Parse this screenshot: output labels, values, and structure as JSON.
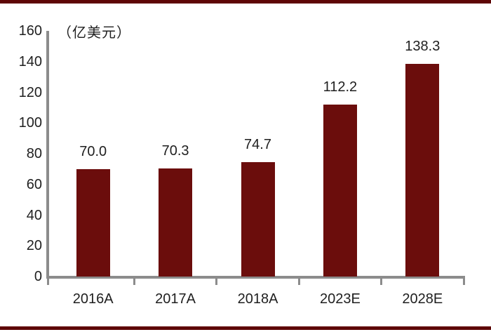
{
  "decorations": {
    "rule_color": "#5e0606"
  },
  "chart_data": {
    "type": "bar",
    "title": "",
    "unit_label": "（亿美元）",
    "categories": [
      "2016A",
      "2017A",
      "2018A",
      "2023E",
      "2028E"
    ],
    "values": [
      70.0,
      70.3,
      74.7,
      112.2,
      138.3
    ],
    "value_labels": [
      "70.0",
      "70.3",
      "74.7",
      "112.2",
      "138.3"
    ],
    "xlabel": "",
    "ylabel": "（亿美元）",
    "ylim": [
      0,
      160
    ],
    "ytick_interval": 20,
    "yticks": [
      0,
      20,
      40,
      60,
      80,
      100,
      120,
      140,
      160
    ],
    "grid": false,
    "legend_position": "none",
    "bar_color": "#6b0d0c",
    "axis_color": "#8c8c8c",
    "text_color": "#1f1f1f"
  }
}
